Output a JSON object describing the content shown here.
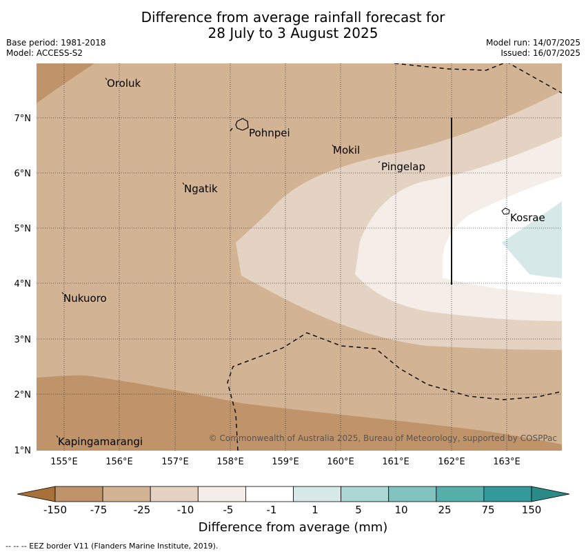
{
  "header": {
    "title_line1": "Difference from average rainfall forecast for",
    "title_line2": "28 July to 3 August 2025",
    "base_period": "Base period: 1981-2018",
    "model": "Model: ACCESS-S2",
    "model_run": "Model run: 14/07/2025",
    "issued": "Issued: 16/07/2025"
  },
  "map": {
    "lon_ticks": [
      "155°E",
      "156°E",
      "157°E",
      "158°E",
      "159°E",
      "160°E",
      "161°E",
      "162°E",
      "163°E"
    ],
    "lat_ticks": [
      "7°N",
      "6°N",
      "5°N",
      "4°N",
      "3°N",
      "2°N",
      "1°N"
    ],
    "places": [
      "Oroluk",
      "Pohnpei",
      "Mokil",
      "Pingelap",
      "Ngatik",
      "Kosrae",
      "Nukuoro",
      "Kapingamarangi"
    ],
    "copyright": "© Commonwealth of Australia 2025, Bureau of Meteorology, supported by COSPPac"
  },
  "colorbar": {
    "labels": [
      "-150",
      "-75",
      "-25",
      "-10",
      "-5",
      "-1",
      "1",
      "5",
      "10",
      "25",
      "75",
      "150"
    ],
    "colors": [
      "#a8713a",
      "#c0946a",
      "#d2b394",
      "#e4d3c2",
      "#f5eee8",
      "#ffffff",
      "#d6e9e8",
      "#acd7d4",
      "#80c3bf",
      "#55aeaa",
      "#33999a",
      "#2a8a88"
    ],
    "title": "Difference from average (mm)"
  },
  "footnote": "--  --  -- EEZ border V11 (Flanders Marine Institute, 2019)."
}
